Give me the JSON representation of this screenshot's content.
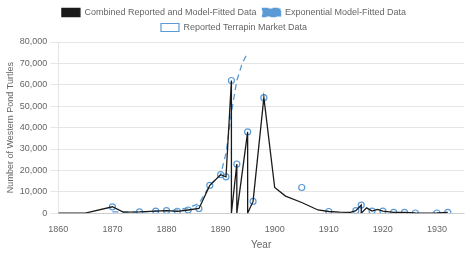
{
  "chart_data": {
    "type": "line",
    "xlabel": "Year",
    "ylabel": "Number of Western Pond Turtles",
    "xlim": [
      1860,
      1935
    ],
    "ylim": [
      0,
      80000
    ],
    "xticks": [
      1860,
      1870,
      1880,
      1890,
      1900,
      1910,
      1920,
      1930
    ],
    "yticks": [
      0,
      {
        "value": 10000,
        "label": "10,000"
      },
      {
        "value": 20000,
        "label": "20,000"
      },
      {
        "value": 30000,
        "label": "30,000"
      },
      {
        "value": 40000,
        "label": "40,000"
      },
      {
        "value": 50000,
        "label": "50,000"
      },
      {
        "value": 60000,
        "label": "60,000"
      },
      {
        "value": 70000,
        "label": "70,000"
      },
      {
        "value": 80000,
        "label": "80,000"
      }
    ],
    "grid": "y",
    "legend": "top",
    "series": [
      {
        "name": "Combined Reported and Model-Fitted Data",
        "type": "line",
        "line_style": "solid",
        "color": "#1a1a1a",
        "x": [
          1860,
          1865,
          1870,
          1872,
          1875,
          1878,
          1880,
          1882,
          1884,
          1886,
          1888,
          1890,
          1891,
          1892,
          1892,
          1893,
          1893,
          1895,
          1895,
          1896,
          1898,
          1900,
          1902,
          1905,
          1908,
          1910,
          1912,
          1914,
          1915,
          1916,
          1916,
          1917,
          1918,
          1919,
          1920,
          1922,
          1924,
          1926,
          1928,
          1930,
          1932
        ],
        "values": [
          0,
          0,
          3000,
          500,
          600,
          1000,
          1200,
          900,
          1500,
          2200,
          13000,
          18000,
          17000,
          62000,
          0,
          23000,
          0,
          38000,
          0,
          5500,
          54000,
          12000,
          8000,
          5000,
          1500,
          800,
          500,
          400,
          1200,
          3800,
          0,
          2500,
          1000,
          1800,
          1000,
          400,
          400,
          100,
          50,
          100,
          400
        ]
      },
      {
        "name": "Exponential Model-Fitted Data",
        "type": "line",
        "line_style": "dashed",
        "color": "#5b9bd5",
        "x": [
          1870,
          1875,
          1878,
          1880,
          1882,
          1884,
          1886,
          1888,
          1890,
          1891,
          1892,
          1893,
          1894,
          1895
        ],
        "values": [
          600,
          600,
          900,
          1200,
          1500,
          2500,
          4500,
          13000,
          18000,
          28000,
          47000,
          62000,
          70000,
          75000
        ]
      },
      {
        "name": "Reported Terrapin Market Data",
        "type": "scatter",
        "marker": "circle",
        "color": "#5b9bd5",
        "x": [
          1870,
          1875,
          1878,
          1880,
          1882,
          1884,
          1886,
          1888,
          1890,
          1891,
          1892,
          1893,
          1895,
          1896,
          1898,
          1905,
          1910,
          1915,
          1916,
          1918,
          1920,
          1922,
          1924,
          1926,
          1930,
          1932
        ],
        "values": [
          3000,
          600,
          1000,
          1200,
          900,
          1500,
          2200,
          13000,
          18000,
          17000,
          62000,
          23000,
          38000,
          5500,
          54000,
          12000,
          800,
          1200,
          3800,
          1000,
          1000,
          400,
          400,
          100,
          100,
          400
        ]
      }
    ]
  }
}
